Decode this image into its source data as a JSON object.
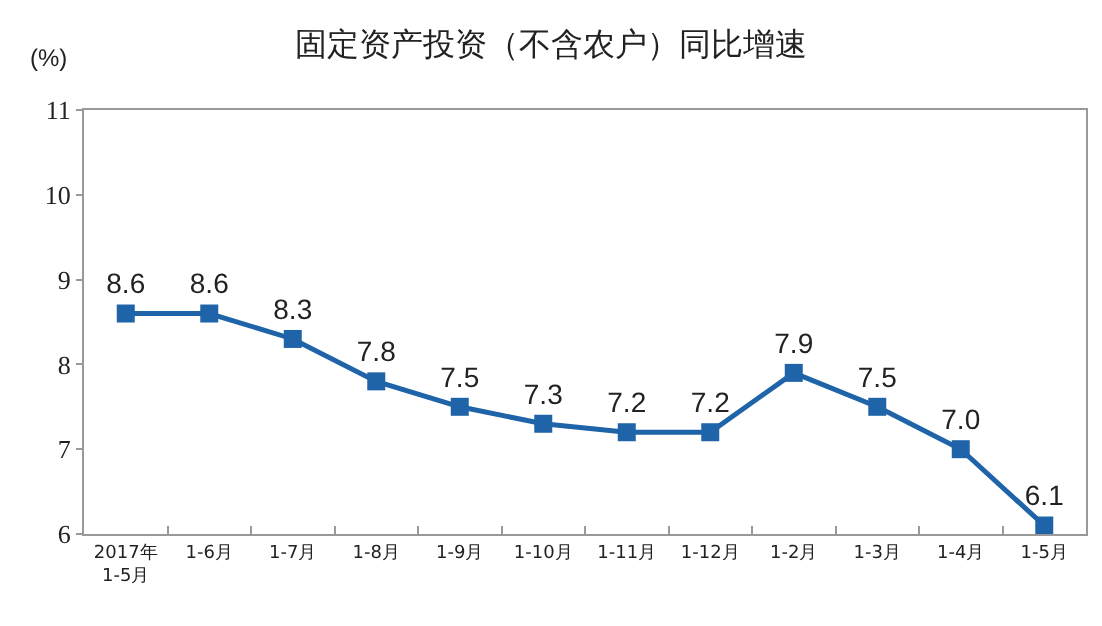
{
  "chart_data": {
    "type": "line",
    "title": "固定资产投资（不含农户）同比增速",
    "ylabel": "(%)",
    "categories": [
      "2017年\n1-5月",
      "1-6月",
      "1-7月",
      "1-8月",
      "1-9月",
      "1-10月",
      "1-11月",
      "1-12月",
      "1-2月",
      "1-3月",
      "1-4月",
      "1-5月"
    ],
    "series": [
      {
        "color": "#1f64a8",
        "values": [
          8.6,
          8.6,
          8.3,
          7.8,
          7.5,
          7.3,
          7.2,
          7.2,
          7.9,
          7.5,
          7.0,
          6.1
        ],
        "value_labels": [
          "8.6",
          "8.6",
          "8.3",
          "7.8",
          "7.5",
          "7.3",
          "7.2",
          "7.2",
          "7.9",
          "7.5",
          "7.0",
          "6.1"
        ]
      }
    ],
    "ylim": [
      6,
      11
    ],
    "yticks": [
      6,
      7,
      8,
      9,
      10,
      11
    ],
    "grid": false,
    "legend": false,
    "marker": "square",
    "line_style": "solid"
  }
}
